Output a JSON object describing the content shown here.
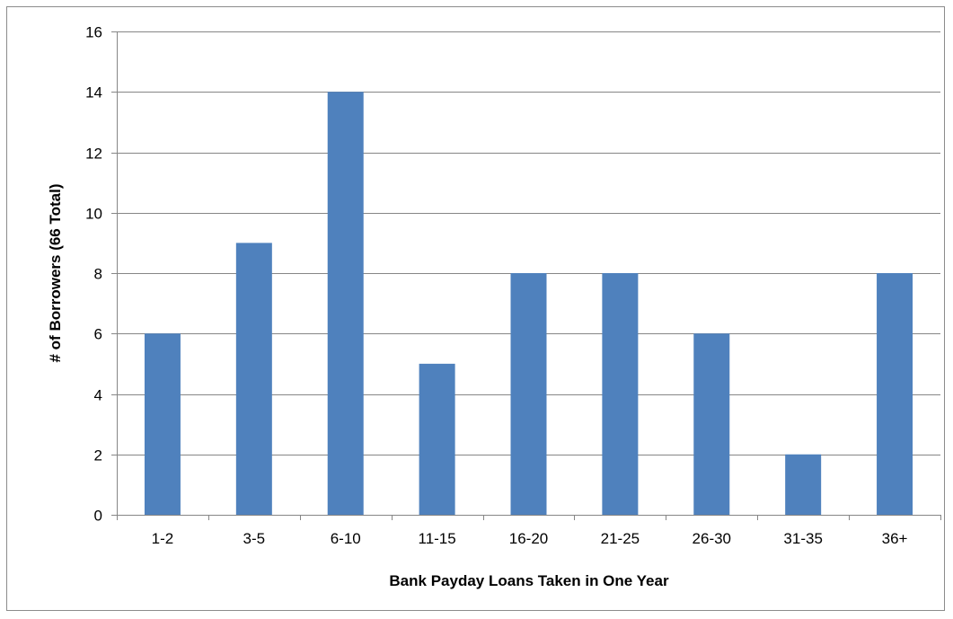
{
  "chart_data": {
    "type": "bar",
    "title": "",
    "xlabel": "Bank Payday Loans Taken in One Year",
    "ylabel": "# of Borrowers (66 Total)",
    "categories": [
      "1-2",
      "3-5",
      "6-10",
      "11-15",
      "16-20",
      "21-25",
      "26-30",
      "31-35",
      "36+"
    ],
    "values": [
      6,
      9,
      14,
      5,
      8,
      8,
      6,
      2,
      8
    ],
    "ylim": [
      0,
      16
    ],
    "yticks": [
      0,
      2,
      4,
      6,
      8,
      10,
      12,
      14,
      16
    ],
    "grid": true,
    "legend": "none",
    "colors": {
      "bar": "#4f81bd",
      "grid": "#868686",
      "axis": "#868686"
    }
  }
}
